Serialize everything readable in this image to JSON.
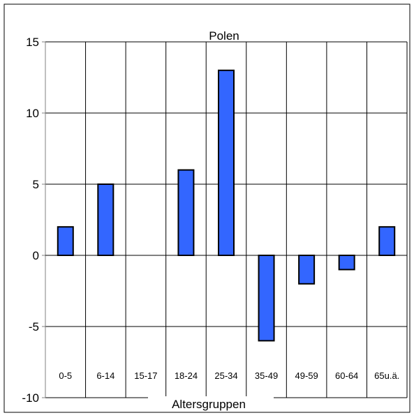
{
  "chart_data": {
    "type": "bar",
    "title": "Polen",
    "xlabel": "Altersgruppen",
    "ylabel": "",
    "categories": [
      "0-5",
      "6-14",
      "15-17",
      "18-24",
      "25-34",
      "35-49",
      "49-59",
      "60-64",
      "65u.ä."
    ],
    "values": [
      2,
      5,
      0,
      6,
      13,
      -6,
      -2,
      -1,
      2
    ],
    "ylim": [
      -10,
      15
    ],
    "yticks": [
      -10,
      -5,
      0,
      5,
      10,
      15
    ],
    "grid": true,
    "legend": "none"
  },
  "colors": {
    "bar_fill": "#3366FF",
    "bar_stroke": "#000000",
    "grid": "#000000",
    "axis": "#808080",
    "frame": "#000000"
  }
}
